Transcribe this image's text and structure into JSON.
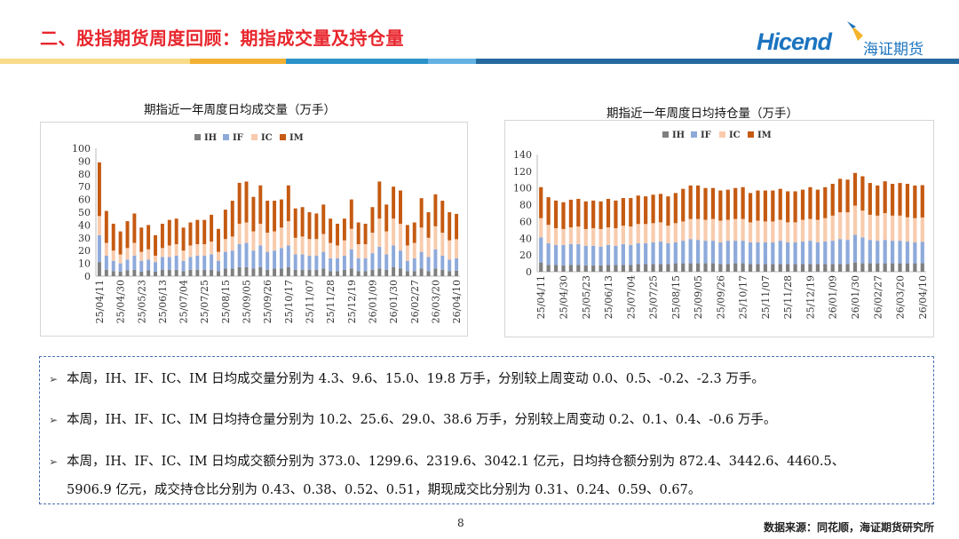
{
  "header": {
    "title": "二、股指期货周度回顾：期指成交量及持仓量",
    "logo_en": "Hicend",
    "logo_cn": "海证期货"
  },
  "colors": {
    "IH": "#7f7f7f",
    "IF": "#8eaadb",
    "IC": "#f8cbad",
    "IM": "#c55a11",
    "title": "#e8262d",
    "brand": "#1c74c0"
  },
  "chart_data": [
    {
      "type": "bar",
      "stacked": true,
      "title": "期指近一年周度日均成交量（万手）",
      "ylim": [
        0,
        100
      ],
      "yticks": [
        0,
        10,
        20,
        30,
        40,
        50,
        60,
        70,
        80,
        90,
        100
      ],
      "legend": [
        "IH",
        "IF",
        "IC",
        "IM"
      ],
      "legend_position": "top",
      "xtick_labels": [
        "25/04/11",
        "25/04/30",
        "25/05/23",
        "25/06/13",
        "25/07/04",
        "25/07/25",
        "25/08/15",
        "25/09/05",
        "25/09/26",
        "25/10/17",
        "25/11/07",
        "25/11/28",
        "25/12/19",
        "26/01/09",
        "26/01/30",
        "26/02/27",
        "26/03/20",
        "26/04/10"
      ],
      "series": [
        {
          "name": "IH",
          "values": [
            11,
            5,
            4,
            3.5,
            4.5,
            5,
            3.5,
            4.5,
            3.5,
            5,
            5,
            5,
            4,
            5,
            5,
            5,
            5,
            4,
            6,
            6,
            7,
            7,
            6,
            7,
            5,
            6,
            6,
            7,
            5,
            5,
            5,
            5,
            6,
            4,
            4,
            5,
            6,
            4,
            4,
            5,
            6,
            5,
            7,
            6,
            4,
            4,
            6,
            4,
            6,
            5,
            4,
            4.3
          ]
        },
        {
          "name": "IF",
          "values": [
            21,
            11,
            8,
            6.5,
            8.5,
            11,
            8.5,
            8.5,
            7.5,
            10,
            10,
            11,
            8,
            10,
            11,
            11,
            12,
            8,
            13,
            14,
            18,
            19,
            14,
            17,
            14,
            14,
            16,
            17,
            12,
            12,
            11,
            11,
            13,
            10,
            10,
            11,
            15,
            10,
            10,
            13,
            17,
            12,
            17,
            14,
            8,
            10,
            13,
            11,
            15,
            11,
            9,
            9.6
          ]
        },
        {
          "name": "IC",
          "values": [
            15,
            10,
            8,
            7,
            9,
            10,
            7,
            8,
            5,
            7,
            9,
            9,
            8,
            9,
            9,
            9,
            10,
            7,
            10,
            11,
            16,
            16,
            15,
            17,
            15,
            15,
            16,
            19,
            13,
            14,
            13,
            13,
            14,
            12,
            10,
            12,
            16,
            11,
            11,
            16,
            22,
            18,
            21,
            21,
            12,
            12,
            19,
            15,
            18,
            18,
            15,
            15.0
          ]
        },
        {
          "name": "IM",
          "values": [
            42,
            25,
            21,
            18,
            21,
            23,
            19,
            19,
            16,
            19,
            20,
            20,
            18,
            18,
            19,
            19,
            21,
            18,
            23,
            28,
            32,
            32,
            27,
            30,
            25,
            24,
            22,
            28,
            23,
            23,
            21,
            20,
            23,
            19,
            17,
            17,
            23,
            17,
            16,
            20,
            29,
            21,
            25,
            26,
            16,
            16,
            23,
            20,
            25,
            25,
            22,
            19.8
          ]
        }
      ]
    },
    {
      "type": "bar",
      "stacked": true,
      "title": "期指近一年周度日均持仓量（万手）",
      "ylim": [
        0,
        140
      ],
      "yticks": [
        0,
        20,
        40,
        60,
        80,
        100,
        120,
        140
      ],
      "legend": [
        "IH",
        "IF",
        "IC",
        "IM"
      ],
      "legend_position": "top",
      "xtick_labels": [
        "25/04/11",
        "25/04/30",
        "25/05/23",
        "25/06/13",
        "25/07/04",
        "25/07/25",
        "25/08/15",
        "25/09/05",
        "25/09/26",
        "25/10/17",
        "25/11/07",
        "25/11/28",
        "25/12/19",
        "26/01/09",
        "26/01/30",
        "26/02/27",
        "26/03/20",
        "26/04/10"
      ],
      "series": [
        {
          "name": "IH",
          "values": [
            11,
            8,
            8,
            7.5,
            8,
            8,
            7.5,
            7.5,
            7.5,
            8,
            8,
            8,
            8,
            9,
            9,
            9,
            9,
            9,
            10,
            10,
            10,
            10,
            10,
            10,
            9,
            9,
            10,
            10,
            9,
            9,
            9,
            9,
            9,
            9,
            9,
            9,
            9,
            9,
            9,
            9,
            9,
            9,
            11,
            10,
            10,
            10,
            10,
            10,
            10,
            10,
            10,
            10.2
          ]
        },
        {
          "name": "IF",
          "values": [
            30,
            26,
            24,
            24.5,
            25,
            25,
            23.5,
            23.5,
            22.5,
            24,
            23,
            25,
            24,
            25,
            25,
            26,
            27,
            25,
            25,
            27,
            29,
            28,
            27,
            27,
            26,
            28,
            27,
            27,
            26,
            26,
            26,
            26,
            28,
            26,
            26,
            27,
            28,
            26,
            27,
            28,
            30,
            29,
            33,
            31,
            28,
            27,
            28,
            27,
            27,
            26,
            25,
            25.6
          ]
        },
        {
          "name": "IC",
          "values": [
            23,
            22,
            20,
            19,
            20,
            21,
            20,
            21,
            21,
            21,
            21,
            22,
            22,
            23,
            23,
            23,
            23,
            21,
            23,
            23,
            24,
            25,
            25,
            26,
            26,
            25,
            26,
            26,
            24,
            26,
            25,
            25,
            25,
            24,
            24,
            26,
            26,
            27,
            28,
            30,
            32,
            33,
            35,
            32,
            30,
            30,
            32,
            30,
            30,
            29,
            29,
            29.0
          ]
        },
        {
          "name": "IM",
          "values": [
            37,
            33,
            33,
            32,
            33,
            33,
            33,
            33,
            33,
            34,
            33,
            33,
            34,
            34,
            33,
            34,
            34,
            35,
            36,
            39,
            40,
            40,
            38,
            37,
            36,
            36,
            37,
            38,
            35,
            36,
            37,
            37,
            37,
            37,
            37,
            36,
            38,
            36,
            37,
            38,
            40,
            39,
            39,
            41,
            38,
            36,
            38,
            38,
            39,
            40,
            39,
            38.6
          ]
        }
      ]
    }
  ],
  "notes": [
    "本周，IH、IF、IC、IM 日均成交量分别为 4.3、9.6、15.0、19.8 万手，分别较上周变动 0.0、0.5、-0.2、-2.3 万手。",
    "本周，IH、IF、IC、IM 日均持仓量分别为 10.2、25.6、29.0、38.6 万手，分别较上周变动 0.2、0.1、0.4、-0.6 万手。",
    "本周，IH、IF、IC、IM 日均成交额分别为 373.0、1299.6、2319.6、3042.1 亿元，日均持仓额分别为 872.4、3442.6、4460.5、",
    "5906.9 亿元，成交持仓比分别为 0.43、0.38、0.52、0.51，期现成交比分别为 0.31、0.24、0.59、0.67。"
  ],
  "footer": {
    "page": "8",
    "source": "数据来源：同花顺，海证期货研究所"
  }
}
